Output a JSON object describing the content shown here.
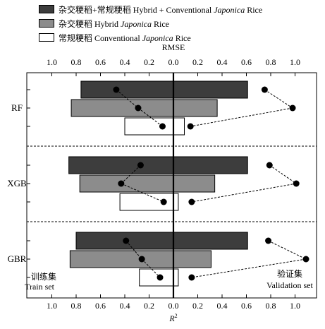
{
  "legend": {
    "items": [
      {
        "zh": "杂交粳稻+常规粳稻",
        "en_pre": "Hybrid + Conventional ",
        "en_italic": "Japonica",
        "en_post": " Rice",
        "color": "#3d3d3d"
      },
      {
        "zh": "杂交粳稻",
        "en_pre": "Hybrid ",
        "en_italic": "Japonica",
        "en_post": " Rice",
        "color": "#8c8c8c"
      },
      {
        "zh": "常规粳稻",
        "en_pre": "Conventional ",
        "en_italic": "Japonica",
        "en_post": " Rice",
        "color": "#ffffff"
      }
    ]
  },
  "chart_data": {
    "type": "bar",
    "title": "",
    "top_axis": {
      "label": "RMSE",
      "ticks": [
        "1.0",
        "0.8",
        "0.6",
        "0.4",
        "0.2",
        "0.0",
        "0.2",
        "0.4",
        "0.6",
        "0.8",
        "1.0"
      ]
    },
    "bottom_axis": {
      "label": "R",
      "label_sup": "2",
      "ticks": [
        "1.0",
        "0.8",
        "0.6",
        "0.4",
        "0.2",
        "0.0",
        "0.2",
        "0.4",
        "0.6",
        "0.8",
        "1.0"
      ]
    },
    "left_annotation": {
      "zh": "训练集",
      "en": "Train set"
    },
    "right_annotation": {
      "zh": "验证集",
      "en": "Validation set"
    },
    "categories": [
      "RF",
      "XGB",
      "GBR"
    ],
    "series": [
      {
        "name": "杂交粳稻+常规粳稻 Hybrid + Conventional Japonica Rice",
        "color": "#3d3d3d"
      },
      {
        "name": "杂交粳稻 Hybrid Japonica Rice",
        "color": "#8c8c8c"
      },
      {
        "name": "常规粳稻 Conventional Japonica Rice",
        "color": "#ffffff"
      }
    ],
    "bars_train_r2": [
      [
        0.76,
        0.84,
        0.4
      ],
      [
        0.86,
        0.77,
        0.44
      ],
      [
        0.8,
        0.85,
        0.28
      ]
    ],
    "bars_validation_r2": [
      [
        0.61,
        0.36,
        0.09
      ],
      [
        0.61,
        0.34,
        0.04
      ],
      [
        0.61,
        0.31,
        0.04
      ]
    ],
    "points_train_rmse": [
      [
        0.47,
        0.29,
        0.09
      ],
      [
        0.27,
        0.43,
        0.08
      ],
      [
        0.39,
        0.26,
        0.11
      ]
    ],
    "points_validation_rmse": [
      [
        0.75,
        0.98,
        0.14
      ],
      [
        0.79,
        1.01,
        0.15
      ],
      [
        0.78,
        1.09,
        0.15
      ]
    ],
    "xlim": [
      -1.1,
      1.1
    ]
  }
}
